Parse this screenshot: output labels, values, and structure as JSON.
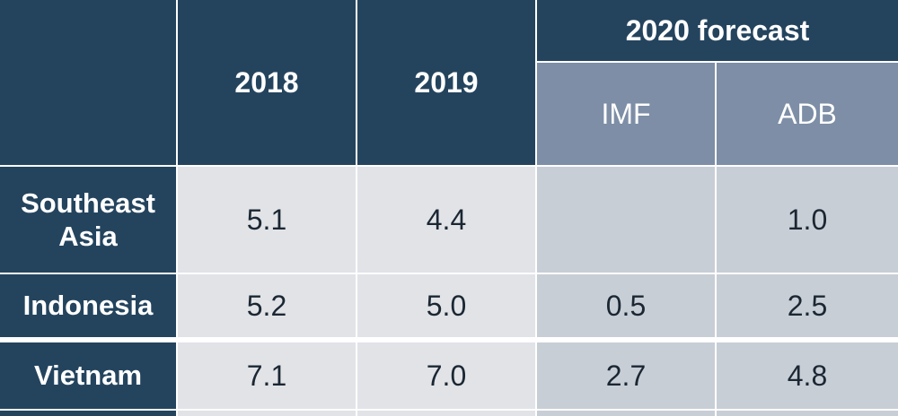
{
  "table": {
    "header": {
      "col_2018": "2018",
      "col_2019": "2019",
      "forecast_group": "2020 forecast",
      "forecast_imf": "IMF",
      "forecast_adb": "ADB"
    },
    "rows": [
      {
        "label_line1": "Southeast",
        "label_line2": "Asia",
        "v2018": "5.1",
        "v2019": "4.4",
        "imf": "",
        "adb": "1.0"
      },
      {
        "label": "Indonesia",
        "v2018": "5.2",
        "v2019": "5.0",
        "imf": "0.5",
        "adb": "2.5"
      },
      {
        "label": "Vietnam",
        "v2018": "7.1",
        "v2019": "7.0",
        "imf": "2.7",
        "adb": "4.8"
      }
    ]
  }
}
